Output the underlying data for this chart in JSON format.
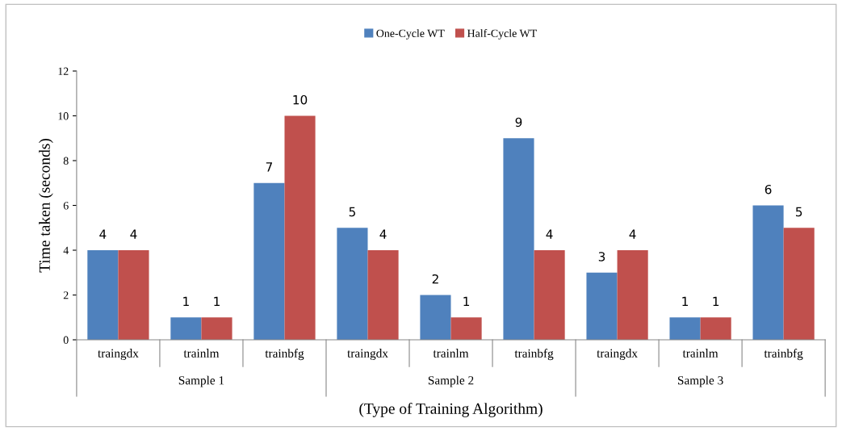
{
  "chart_data": {
    "type": "bar",
    "xlabel": "(Type of Training Algorithm)",
    "ylabel": "Time taken (seconds)",
    "categories": [
      "traingdx",
      "trainlm",
      "trainbfg",
      "traingdx",
      "trainlm",
      "trainbfg",
      "traingdx",
      "trainlm",
      "trainbfg"
    ],
    "annotations": [
      "Sample 1",
      "Sample 2",
      "Sample 3"
    ],
    "series": [
      {
        "name": "One-Cycle WT",
        "color": "#4f81bd",
        "values": [
          4,
          1,
          7,
          5,
          2,
          9,
          3,
          1,
          6
        ]
      },
      {
        "name": "Half-Cycle WT",
        "color": "#c0504d",
        "values": [
          4,
          1,
          10,
          4,
          1,
          4,
          4,
          1,
          5
        ]
      }
    ],
    "ylim": [
      0,
      12
    ],
    "yticks": [
      0,
      2,
      4,
      6,
      8,
      10,
      12
    ],
    "data_labels": true,
    "grid": false,
    "legend": "top"
  }
}
